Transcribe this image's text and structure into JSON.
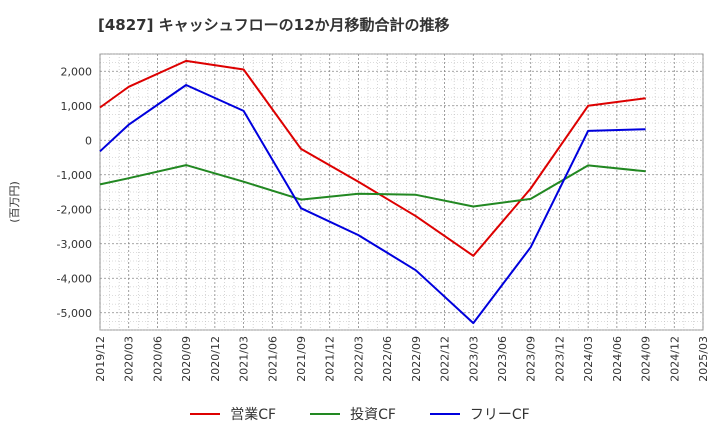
{
  "chart_data": {
    "type": "line",
    "title": "[4827]  キャッシュフローの12か月移動合計の推移",
    "ylabel": "(百万円)",
    "xlabel": "",
    "ylim": [
      -5500,
      2500
    ],
    "yticks": [
      2000,
      1000,
      0,
      -1000,
      -2000,
      -3000,
      -4000,
      -5000
    ],
    "ytick_labels": [
      "2,000",
      "1,000",
      "0",
      "-1,000",
      "-2,000",
      "-3,000",
      "-4,000",
      "-5,000"
    ],
    "categories": [
      "2019/12",
      "2020/03",
      "2020/06",
      "2020/09",
      "2020/12",
      "2021/03",
      "2021/06",
      "2021/09",
      "2021/12",
      "2022/03",
      "2022/06",
      "2022/09",
      "2022/12",
      "2023/03",
      "2023/06",
      "2023/09",
      "2023/12",
      "2024/03",
      "2024/06",
      "2024/09",
      "2024/12",
      "2025/03"
    ],
    "series": [
      {
        "name": "営業CF",
        "color": "#dd0000",
        "values": [
          950,
          1550,
          null,
          2300,
          null,
          2050,
          null,
          -250,
          null,
          -1200,
          null,
          -2200,
          null,
          -3350,
          null,
          -1400,
          null,
          1000,
          null,
          1220,
          null,
          null
        ]
      },
      {
        "name": "投資CF",
        "color": "#228822",
        "values": [
          -1280,
          -1100,
          null,
          -720,
          null,
          -1200,
          null,
          -1720,
          null,
          -1550,
          null,
          -1580,
          null,
          -1920,
          null,
          -1700,
          null,
          -730,
          null,
          -900,
          null,
          null
        ]
      },
      {
        "name": "フリーCF",
        "color": "#0000dd",
        "values": [
          -320,
          450,
          null,
          1600,
          null,
          850,
          null,
          -1970,
          null,
          -2750,
          null,
          -3770,
          null,
          -5300,
          null,
          -3100,
          null,
          270,
          null,
          320,
          null,
          null
        ]
      }
    ],
    "grid": true,
    "legend": "bottom-center"
  }
}
